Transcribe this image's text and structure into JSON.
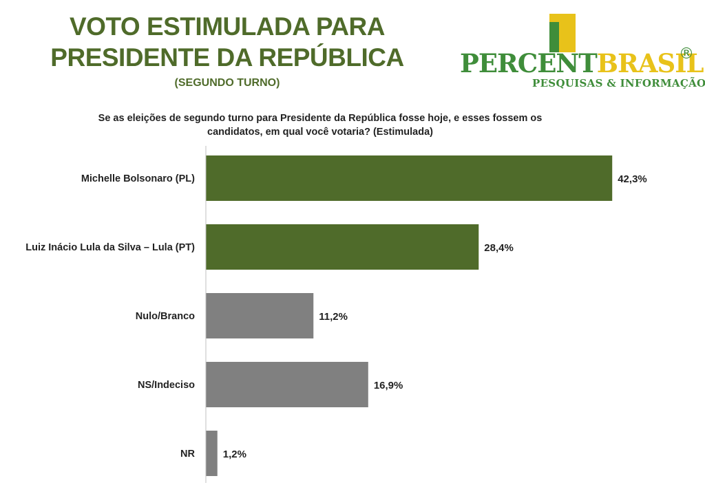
{
  "header": {
    "title_line1": "VOTO ESTIMULADA PARA",
    "title_line2": "PRESIDENTE DA REPÚBLICA",
    "turn": "(SEGUNDO TURNO)"
  },
  "logo": {
    "name_part1": "PERCENT",
    "name_part2": "BRASIL",
    "registered": "®",
    "tagline": "PESQUISAS & INFORMAÇÃO",
    "colors": {
      "green": "#3f8d3a",
      "yellow": "#e8c21a"
    }
  },
  "question": {
    "line1": "Se as eleições de segundo turno para Presidente da República fosse hoje, e esses fossem os",
    "line2": "candidatos, em qual você votaria? (Estimulada)"
  },
  "chart_data": {
    "type": "bar",
    "orientation": "horizontal",
    "categories": [
      "Michelle Bolsonaro (PL)",
      "Luiz Inácio Lula da Silva – Lula (PT)",
      "Nulo/Branco",
      "NS/Indeciso",
      "NR"
    ],
    "values": [
      42.3,
      28.4,
      11.2,
      16.9,
      1.2
    ],
    "value_labels": [
      "42,3%",
      "28,4%",
      "11,2%",
      "16,9%",
      "1,2%"
    ],
    "colors": [
      "#4f6b2a",
      "#4f6b2a",
      "#808080",
      "#808080",
      "#808080"
    ],
    "xlim": [
      0,
      43
    ],
    "grid": false,
    "axis_line_color": "#bfbfbf"
  }
}
